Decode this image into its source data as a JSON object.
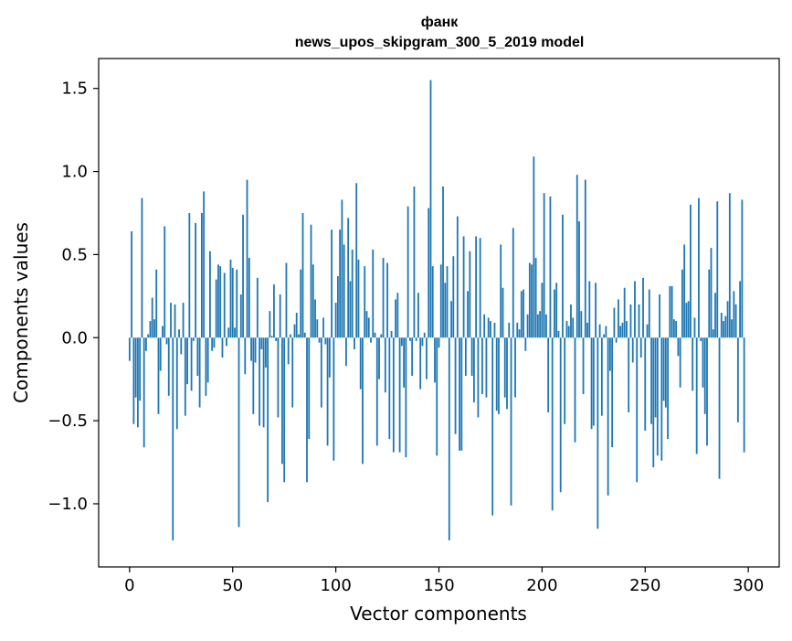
{
  "chart_data": {
    "type": "bar",
    "title_lines": [
      "фанк",
      "news_upos_skipgram_300_5_2019 model"
    ],
    "xlabel": "Vector components",
    "ylabel": "Components values",
    "xlim": [
      -15,
      315
    ],
    "ylim": [
      -1.38,
      1.68
    ],
    "xticks": [
      0,
      50,
      100,
      150,
      200,
      250,
      300
    ],
    "yticks": [
      -1.0,
      -0.5,
      0.0,
      0.5,
      1.0,
      1.5
    ],
    "ytick_labels": [
      "−1.0",
      "−0.5",
      "0.0",
      "0.5",
      "1.0",
      "1.5"
    ],
    "bar_color": "#1f77b4",
    "grid": false,
    "legend": "none",
    "values": [
      -0.14,
      0.64,
      -0.52,
      -0.36,
      -0.54,
      -0.38,
      0.84,
      -0.66,
      -0.08,
      0.02,
      0.1,
      0.24,
      0.11,
      0.41,
      -0.46,
      -0.2,
      0.07,
      0.67,
      -0.04,
      -0.35,
      0.21,
      -1.22,
      0.2,
      -0.55,
      0.05,
      -0.1,
      0.21,
      -0.47,
      -0.28,
      0.75,
      -0.32,
      -0.02,
      0.69,
      -0.23,
      -0.42,
      0.75,
      0.88,
      -0.35,
      -0.27,
      0.52,
      -0.08,
      -0.06,
      0.35,
      0.44,
      0.43,
      -0.12,
      0.39,
      -0.05,
      0.06,
      0.47,
      0.42,
      0.06,
      0.41,
      -1.14,
      0.26,
      0.74,
      -0.22,
      0.95,
      0.48,
      -0.14,
      -0.46,
      -0.15,
      0.36,
      -0.53,
      -0.07,
      -0.54,
      -0.18,
      -0.99,
      0.16,
      0.01,
      0.32,
      -0.02,
      -0.48,
      0.26,
      -0.76,
      -0.87,
      0.45,
      -0.16,
      0.02,
      -0.42,
      0.08,
      0.15,
      0.02,
      0.41,
      0.75,
      0.03,
      -0.87,
      -0.61,
      0.68,
      0.44,
      0.23,
      0.11,
      -0.03,
      -0.42,
      0.12,
      -0.04,
      -0.65,
      -0.24,
      0.65,
      -0.74,
      0.21,
      0.37,
      0.65,
      0.83,
      0.56,
      -0.17,
      0.72,
      0.34,
      0.53,
      -0.07,
      0.93,
      0.47,
      -0.31,
      -0.76,
      0.43,
      0.16,
      0.12,
      -0.03,
      0.53,
      0.03,
      -0.65,
      -0.25,
      0.02,
      0.48,
      -0.33,
      0.45,
      -0.61,
      0.04,
      -0.69,
      0.23,
      0.27,
      -0.69,
      -0.05,
      -0.3,
      -0.72,
      0.79,
      -0.02,
      -0.23,
      0.91,
      -0.02,
      0.27,
      -0.31,
      -0.05,
      0.03,
      -0.25,
      0.78,
      1.55,
      0.43,
      -0.27,
      -0.71,
      -0.06,
      0.44,
      0.91,
      0.33,
      0.43,
      -1.22,
      0.22,
      0.49,
      -0.58,
      0.73,
      -0.68,
      -0.68,
      0.61,
      -0.23,
      0.28,
      0.52,
      -0.23,
      -0.39,
      0.61,
      -0.48,
      0.6,
      -0.34,
      0.14,
      -0.36,
      0.12,
      0.1,
      -1.07,
      0.09,
      -0.44,
      -0.46,
      0.56,
      0.3,
      -0.36,
      -0.43,
      0.09,
      -1.01,
      0.66,
      -0.36,
      0.09,
      0.05,
      0.28,
      0.29,
      -0.08,
      0.14,
      0.45,
      0.44,
      1.09,
      0.48,
      0.14,
      0.16,
      0.33,
      0.87,
      0.14,
      -0.45,
      0.85,
      -1.04,
      0.29,
      0.33,
      0.04,
      -0.93,
      0.74,
      -0.52,
      0.1,
      0.07,
      0.2,
      0.12,
      -0.63,
      0.98,
      0.7,
      0.16,
      -0.34,
      0.95,
      0.09,
      0.34,
      -0.55,
      -0.53,
      0.33,
      -1.15,
      0.08,
      -0.47,
      0.02,
      0.07,
      -0.95,
      -0.2,
      -0.66,
      0.18,
      -0.03,
      0.23,
      0.07,
      0.09,
      0.3,
      0.1,
      -0.45,
      0.2,
      -0.15,
      0.34,
      -0.87,
      0.2,
      -0.12,
      0.36,
      -0.56,
      0.08,
      0.29,
      -0.52,
      -0.78,
      -0.48,
      -0.71,
      0.26,
      -0.74,
      -0.38,
      -0.42,
      -0.61,
      0.31,
      0.31,
      0.11,
      0.1,
      -0.11,
      -0.3,
      0.41,
      0.56,
      0.21,
      0.22,
      0.8,
      -0.32,
      0.12,
      -0.7,
      0.84,
      -0.02,
      -0.3,
      -0.46,
      -0.65,
      0.41,
      0.54,
      0.05,
      0.27,
      0.82,
      -0.85,
      0.15,
      0.1,
      0.13,
      0.22,
      0.87,
      0.11,
      0.28,
      0.2,
      -0.51,
      0.34,
      0.83,
      -0.69
    ]
  }
}
